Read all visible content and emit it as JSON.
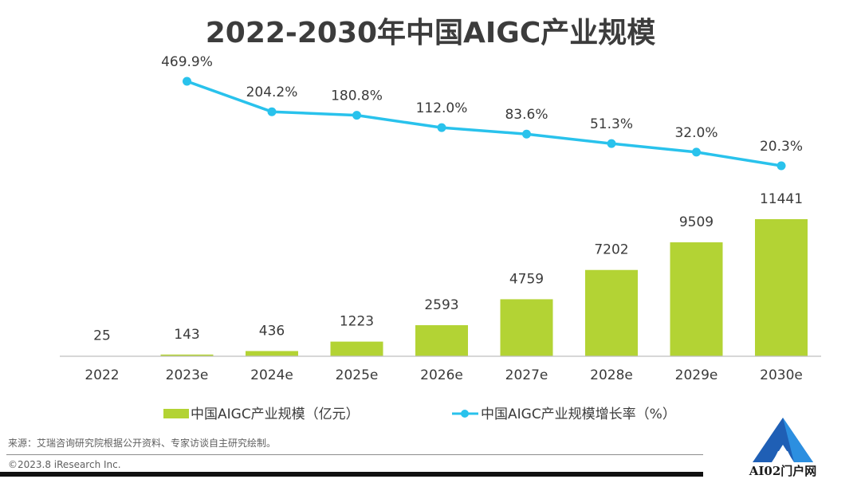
{
  "title": "2022-2030年中国AIGC产业规模",
  "source_note": "来源：艾瑞咨询研究院根据公开资料、专家访谈自主研究绘制。",
  "copyright": "©2023.8 iResearch Inc.",
  "watermark": "AI02门户网",
  "colors": {
    "bar": "#b3d334",
    "line": "#29c2ec",
    "axis": "#bfbfbf",
    "label": "#3a3a3a",
    "title": "#3c3c3c"
  },
  "chart_data": {
    "type": "bar+line",
    "categories": [
      "2022",
      "2023e",
      "2024e",
      "2025e",
      "2026e",
      "2027e",
      "2028e",
      "2029e",
      "2030e"
    ],
    "series": [
      {
        "name": "中国AIGC产业规模（亿元）",
        "type": "bar",
        "values": [
          25,
          143,
          436,
          1223,
          2593,
          4759,
          7202,
          9509,
          11441
        ],
        "labels": [
          "25",
          "143",
          "436",
          "1223",
          "2593",
          "4759",
          "7202",
          "9509",
          "11441"
        ]
      },
      {
        "name": "中国AIGC产业规模增长率（%）",
        "type": "line",
        "values": [
          null,
          469.9,
          204.2,
          180.8,
          112.0,
          83.6,
          51.3,
          32.0,
          20.3
        ],
        "labels": [
          "",
          "469.9%",
          "204.2%",
          "180.8%",
          "112.0%",
          "83.6%",
          "51.3%",
          "32.0%",
          "20.3%"
        ]
      }
    ],
    "legend": "bottom",
    "grid": false
  }
}
